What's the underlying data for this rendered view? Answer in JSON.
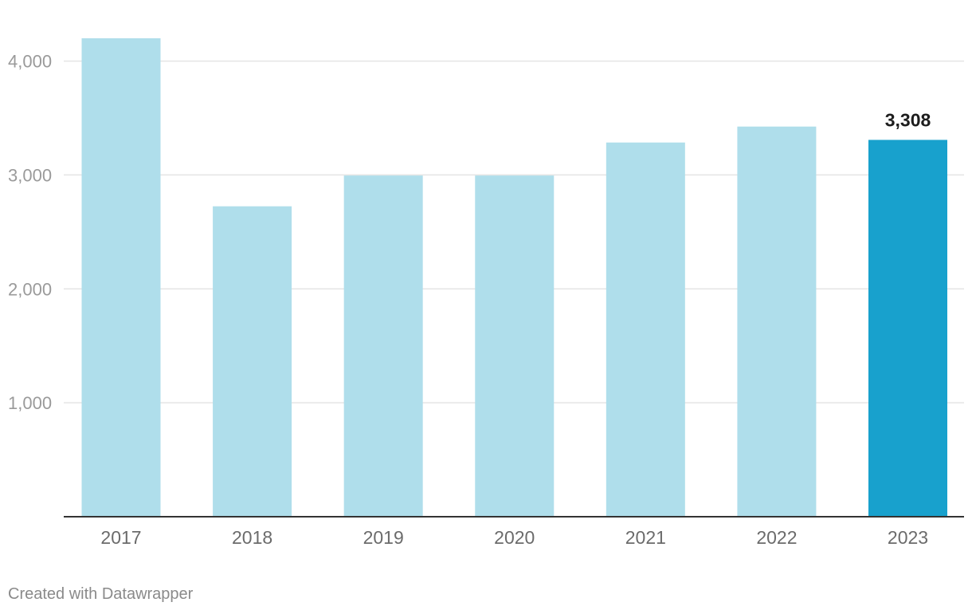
{
  "chart_data": {
    "type": "bar",
    "title": "",
    "xlabel": "",
    "ylabel": "",
    "categories": [
      "2017",
      "2018",
      "2019",
      "2020",
      "2021",
      "2022",
      "2023"
    ],
    "values": [
      4200,
      2725,
      2995,
      2995,
      3285,
      3425,
      3308
    ],
    "ylim": [
      0,
      4200
    ],
    "y_ticks": [
      1000,
      2000,
      3000,
      4000
    ],
    "y_tick_labels": [
      "1,000",
      "2,000",
      "3,000",
      "4,000"
    ],
    "grid": true,
    "highlighted_category": "2023",
    "data_labels": [
      {
        "category": "2023",
        "text": "3,308"
      }
    ],
    "colors": {
      "bar": "#afdeeb",
      "highlight": "#18a1cd",
      "grid": "#e4e4e4",
      "axis": "#333333"
    }
  },
  "footer": {
    "credit": "Created with Datawrapper"
  }
}
